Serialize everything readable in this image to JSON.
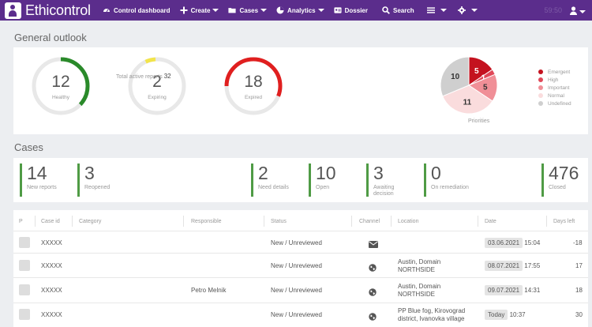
{
  "nav": {
    "brand": "Ethicontrol",
    "items": [
      {
        "icon": "dashboard-icon",
        "label": "Control dashboard"
      },
      {
        "icon": "plus-icon",
        "label": "Create"
      },
      {
        "icon": "folder-icon",
        "label": "Cases"
      },
      {
        "icon": "pie-chart-icon",
        "label": "Analytics"
      },
      {
        "icon": "dossier-icon",
        "label": "Dossier"
      },
      {
        "icon": "search-icon",
        "label": "Search"
      }
    ],
    "time": "59:50"
  },
  "general": {
    "title": "General outlook",
    "gauges": [
      {
        "value": "12",
        "label": "Healthy",
        "color": "#2a8a2a",
        "fill": 0.37
      },
      {
        "value": "2",
        "label": "Expiring",
        "color": "#f2e44a",
        "fill": 0.06
      },
      {
        "value": "18",
        "label": "Expired",
        "color": "#e01f1f",
        "fill": 0.56
      }
    ],
    "total_label": "Total active reports",
    "total_value": "32",
    "priorities_label": "Priorities",
    "pie": [
      {
        "name": "Emergent",
        "value": 5,
        "color": "#c4121f"
      },
      {
        "name": "High",
        "value": 1,
        "color": "#e04858"
      },
      {
        "name": "Important",
        "value": 5,
        "color": "#f08f97"
      },
      {
        "name": "Normal",
        "value": 11,
        "color": "#fadcdd"
      },
      {
        "name": "Undefined",
        "value": 10,
        "color": "#cfcfcf"
      }
    ]
  },
  "cases": {
    "title": "Cases",
    "stats": [
      {
        "value": "14",
        "label": "New reports"
      },
      {
        "value": "3",
        "label": "Reopened"
      },
      {
        "value": "2",
        "label": "Need details"
      },
      {
        "value": "10",
        "label": "Open"
      },
      {
        "value": "3",
        "label": "Awaiting decision"
      },
      {
        "value": "0",
        "label": "On remediation"
      },
      {
        "value": "476",
        "label": "Closed"
      }
    ]
  },
  "table": {
    "headers": [
      "P",
      "Case id",
      "Category",
      "Responsible",
      "Status",
      "Channel",
      "Location",
      "Date",
      "Days left"
    ],
    "rows": [
      {
        "case_id": "XXXXX",
        "responsible": "",
        "status": "New / Unreviewed",
        "channel": "envelope-icon",
        "location": "",
        "date": "03.06.2021",
        "time": "15:04",
        "days": "-18"
      },
      {
        "case_id": "XXXXX",
        "responsible": "",
        "status": "New / Unreviewed",
        "channel": "globe-icon",
        "location": "Austin, Domain NORTHSIDE",
        "date": "08.07.2021",
        "time": "17:55",
        "days": "17"
      },
      {
        "case_id": "XXXXX",
        "responsible": "Petro Melnik",
        "status": "New / Unreviewed",
        "channel": "globe-icon",
        "location": "Austin, Domain NORTHSIDE",
        "date": "09.07.2021",
        "time": "14:31",
        "days": "18"
      },
      {
        "case_id": "XXXXX",
        "responsible": "",
        "status": "New / Unreviewed",
        "channel": "globe-icon",
        "location": "PP Blue fog, Kirovograd district, Ivanovka village",
        "date": "Today",
        "time": "10:37",
        "days": "30"
      }
    ]
  }
}
